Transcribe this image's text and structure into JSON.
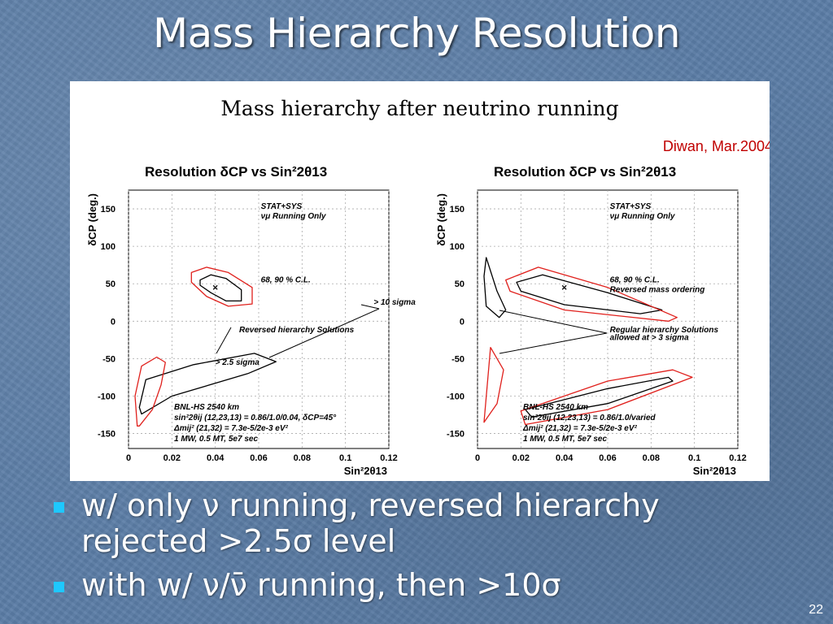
{
  "slide": {
    "title": "Mass Hierarchy Resolution",
    "page_number": "22",
    "bullets": [
      {
        "line1": "w/ only ν running, reversed hierarchy",
        "line2": "rejected >2.5σ level"
      },
      {
        "line1": " with w/ ν/ν̄ running, then >10σ",
        "line2": ""
      }
    ],
    "bullet_color": "#1ec8ff"
  },
  "figure": {
    "title": "Mass hierarchy after neutrino running",
    "credit": "Diwan, Mar.2004"
  },
  "chart_data": [
    {
      "type": "scatter",
      "title": "Resolution δCP vs Sin²2θ13",
      "xlabel": "Sin²2θ13",
      "ylabel": "δCP (deg.)",
      "xlim": [
        0,
        0.12
      ],
      "ylim": [
        -170,
        175
      ],
      "x_ticks": [
        "0",
        "0.02",
        "0.04",
        "0.06",
        "0.08",
        "0.1",
        "0.12"
      ],
      "y_ticks": [
        "150",
        "100",
        "50",
        "0",
        "-50",
        "-100",
        "-150"
      ],
      "grid": true,
      "best_fit": {
        "x": 0.04,
        "y": 45
      },
      "contours": [
        {
          "name": "68 %",
          "color": "#000000",
          "points": [
            [
              0.033,
              55
            ],
            [
              0.038,
              62
            ],
            [
              0.045,
              57
            ],
            [
              0.052,
              42
            ],
            [
              0.052,
              27
            ],
            [
              0.045,
              27
            ],
            [
              0.038,
              38
            ],
            [
              0.033,
              48
            ],
            [
              0.033,
              55
            ]
          ]
        },
        {
          "name": "90 %",
          "color": "#e0201c",
          "points": [
            [
              0.029,
              65
            ],
            [
              0.036,
              72
            ],
            [
              0.046,
              65
            ],
            [
              0.057,
              45
            ],
            [
              0.057,
              23
            ],
            [
              0.046,
              20
            ],
            [
              0.036,
              33
            ],
            [
              0.029,
              52
            ],
            [
              0.029,
              65
            ]
          ]
        },
        {
          "name": "68 %",
          "color": "#000000",
          "points": [
            [
              0.005,
              -115
            ],
            [
              0.008,
              -78
            ],
            [
              0.03,
              -58
            ],
            [
              0.058,
              -43
            ],
            [
              0.068,
              -54
            ],
            [
              0.055,
              -70
            ],
            [
              0.02,
              -100
            ],
            [
              0.006,
              -124
            ],
            [
              0.005,
              -115
            ]
          ]
        },
        {
          "name": "90 %",
          "color": "#e0201c",
          "points": [
            [
              0.004,
              -140
            ],
            [
              0.003,
              -100
            ],
            [
              0.006,
              -60
            ],
            [
              0.013,
              -48
            ],
            [
              0.017,
              -55
            ],
            [
              0.015,
              -85
            ],
            [
              0.011,
              -118
            ],
            [
              0.005,
              -140
            ]
          ]
        }
      ],
      "annotations": [
        {
          "text": "STAT+SYS",
          "x": 0.061,
          "y": 150
        },
        {
          "text": "νμ Running Only",
          "x": 0.061,
          "y": 137
        },
        {
          "text": "68, 90 % C.L.",
          "x": 0.061,
          "y": 52
        },
        {
          "text": "> 10 sigma",
          "x": 0.113,
          "y": 22
        },
        {
          "text": "Reversed hierarchy Solutions",
          "x": 0.051,
          "y": -15
        },
        {
          "text": "> 2.5 sigma",
          "x": 0.04,
          "y": -58
        },
        {
          "text": "BNL-HS  2540 km",
          "x": 0.021,
          "y": -118
        },
        {
          "text": "sin²2θij (12,23,13) = 0.86/1.0/0.04, δCP=45°",
          "x": 0.021,
          "y": -132
        },
        {
          "text": "Δmij² (21,32) = 7.3e-5/2e-3 eV²",
          "x": 0.021,
          "y": -146
        },
        {
          "text": "1 MW, 0.5 MT, 5e7 sec",
          "x": 0.021,
          "y": -160
        }
      ]
    },
    {
      "type": "scatter",
      "title": "Resolution δCP vs Sin²2θ13",
      "xlabel": "Sin²2θ13",
      "ylabel": "δCP (deg.)",
      "xlim": [
        0,
        0.12
      ],
      "ylim": [
        -170,
        175
      ],
      "x_ticks": [
        "0",
        "0.02",
        "0.04",
        "0.06",
        "0.08",
        "0.1",
        "0.12"
      ],
      "y_ticks": [
        "150",
        "100",
        "50",
        "0",
        "-50",
        "-100",
        "-150"
      ],
      "grid": true,
      "best_fit": {
        "x": 0.04,
        "y": 45
      },
      "contours": [
        {
          "name": "68 %",
          "color": "#000000",
          "points": [
            [
              0.018,
              52
            ],
            [
              0.03,
              62
            ],
            [
              0.06,
              38
            ],
            [
              0.085,
              15
            ],
            [
              0.075,
              10
            ],
            [
              0.04,
              22
            ],
            [
              0.02,
              40
            ],
            [
              0.018,
              52
            ]
          ]
        },
        {
          "name": "90 %",
          "color": "#e0201c",
          "points": [
            [
              0.013,
              55
            ],
            [
              0.028,
              72
            ],
            [
              0.06,
              45
            ],
            [
              0.092,
              5
            ],
            [
              0.088,
              0
            ],
            [
              0.04,
              15
            ],
            [
              0.015,
              40
            ],
            [
              0.013,
              55
            ]
          ]
        },
        {
          "name": "68 %",
          "color": "#000000",
          "points": [
            [
              0.004,
              85
            ],
            [
              0.009,
              40
            ],
            [
              0.013,
              15
            ],
            [
              0.01,
              5
            ],
            [
              0.004,
              20
            ],
            [
              0.003,
              60
            ],
            [
              0.004,
              85
            ]
          ]
        },
        {
          "name": "90 %",
          "color": "#e0201c",
          "points": [
            [
              0.003,
              -135
            ],
            [
              0.006,
              -35
            ],
            [
              0.012,
              -65
            ],
            [
              0.009,
              -110
            ],
            [
              0.003,
              -135
            ]
          ]
        },
        {
          "name": "68 %",
          "color": "#000000",
          "points": [
            [
              0.022,
              -118
            ],
            [
              0.06,
              -90
            ],
            [
              0.088,
              -75
            ],
            [
              0.09,
              -80
            ],
            [
              0.06,
              -110
            ],
            [
              0.025,
              -128
            ],
            [
              0.022,
              -118
            ]
          ]
        },
        {
          "name": "90 %",
          "color": "#e0201c",
          "points": [
            [
              0.02,
              -120
            ],
            [
              0.06,
              -80
            ],
            [
              0.09,
              -65
            ],
            [
              0.099,
              -75
            ],
            [
              0.06,
              -118
            ],
            [
              0.022,
              -138
            ],
            [
              0.02,
              -120
            ]
          ]
        }
      ],
      "annotations": [
        {
          "text": "STAT+SYS",
          "x": 0.061,
          "y": 150
        },
        {
          "text": "νμ Running Only",
          "x": 0.061,
          "y": 137
        },
        {
          "text": "68, 90 % C.L.",
          "x": 0.061,
          "y": 52
        },
        {
          "text": "Reversed mass ordering",
          "x": 0.061,
          "y": 39
        },
        {
          "text": "Regular hierarchy Solutions",
          "x": 0.061,
          "y": -15
        },
        {
          "text": "allowed at > 3 sigma",
          "x": 0.061,
          "y": -25
        },
        {
          "text": "BNL-HS  2540 km",
          "x": 0.021,
          "y": -118
        },
        {
          "text": "sin²2θij (12,23,13) = 0.86/1.0/varied",
          "x": 0.021,
          "y": -132
        },
        {
          "text": "Δmij² (21,32) = 7.3e-5/2e-3 eV²",
          "x": 0.021,
          "y": -146
        },
        {
          "text": "1 MW, 0.5 MT, 5e7 sec",
          "x": 0.021,
          "y": -160
        }
      ]
    }
  ]
}
